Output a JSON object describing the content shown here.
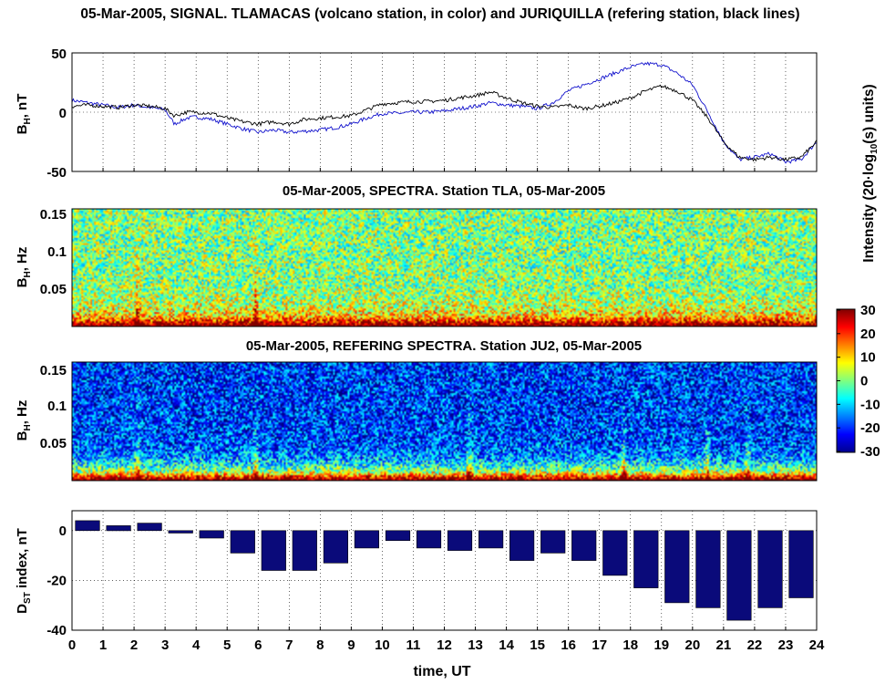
{
  "figure": {
    "title": "05-Mar-2005, SIGNAL. TLAMACAS (volcano station, in color) and JURIQUILLA (refering station, black lines)",
    "xlabel": "time, UT",
    "colorbar": {
      "label": "Intensity (20·log",
      "label_sub": "10",
      "label_tail": "(s) units)",
      "ticks": [
        "30",
        "20",
        "10",
        "0",
        "-10",
        "-20",
        "-30"
      ]
    }
  },
  "chart_data": [
    {
      "type": "line",
      "id": "signal",
      "ylabel": "B",
      "ylabel_sub": "H",
      "ylabel_tail": ", nT",
      "ylim": [
        -50,
        50
      ],
      "yticks": [
        "50",
        "0",
        "-50"
      ],
      "xlim": [
        0,
        24
      ],
      "grid": true,
      "series": [
        {
          "name": "TLAMACAS",
          "color": "#1010cc",
          "x": [
            0,
            0.5,
            1,
            1.5,
            2,
            2.5,
            3,
            3.3,
            3.7,
            4,
            4.5,
            5,
            5.5,
            6,
            6.5,
            7,
            7.5,
            8,
            8.5,
            9,
            9.5,
            10,
            10.5,
            11,
            11.5,
            12,
            12.5,
            13,
            13.5,
            14,
            14.5,
            15,
            15.5,
            16,
            16.5,
            17,
            17.5,
            18,
            18.5,
            19,
            19.5,
            20,
            20.5,
            21,
            21.5,
            22,
            22.5,
            23,
            23.5,
            24
          ],
          "values": [
            10,
            8,
            6,
            4,
            6,
            4,
            2,
            -10,
            -5,
            -4,
            -6,
            -10,
            -14,
            -17,
            -15,
            -17,
            -16,
            -15,
            -13,
            -10,
            -5,
            -1,
            -1,
            0,
            0,
            1,
            3,
            5,
            8,
            6,
            5,
            3,
            8,
            18,
            23,
            28,
            33,
            38,
            41,
            40,
            33,
            23,
            0,
            -25,
            -40,
            -38,
            -35,
            -42,
            -40,
            -25
          ]
        },
        {
          "name": "JURIQUILLA",
          "color": "#000000",
          "x": [
            0,
            0.5,
            1,
            1.5,
            2,
            2.5,
            3,
            3.3,
            3.7,
            4,
            4.5,
            5,
            5.5,
            6,
            6.5,
            7,
            7.5,
            8,
            8.5,
            9,
            9.5,
            10,
            10.5,
            11,
            11.5,
            12,
            12.5,
            13,
            13.5,
            14,
            14.5,
            15,
            15.5,
            16,
            16.5,
            17,
            17.5,
            18,
            18.5,
            19,
            19.5,
            20,
            20.5,
            21,
            21.5,
            22,
            22.5,
            23,
            23.5,
            24
          ],
          "values": [
            5,
            6,
            5,
            4,
            6,
            5,
            3,
            -3,
            0,
            0,
            -1,
            -5,
            -8,
            -10,
            -8,
            -10,
            -6,
            -5,
            -4,
            -3,
            2,
            7,
            8,
            9,
            9,
            10,
            12,
            14,
            17,
            12,
            8,
            5,
            4,
            6,
            3,
            5,
            8,
            12,
            18,
            22,
            18,
            10,
            -5,
            -25,
            -38,
            -40,
            -38,
            -40,
            -38,
            -25
          ]
        }
      ]
    },
    {
      "type": "heatmap",
      "id": "spectra-tla",
      "title": "05-Mar-2005, SPECTRA. Station TLA, 05-Mar-2005",
      "ylabel": "B",
      "ylabel_sub": "H",
      "ylabel_tail": ", Hz",
      "ylim": [
        0,
        0.16
      ],
      "yticks": [
        "0.15",
        "0.1",
        "0.05"
      ],
      "xlim": [
        0,
        24
      ],
      "zlim": [
        -30,
        30
      ],
      "background_level": 0,
      "low_frequency_level": 25,
      "spikes_ut": [
        2.1,
        5.9
      ]
    },
    {
      "type": "heatmap",
      "id": "spectra-ju2",
      "title": "05-Mar-2005, REFERING SPECTRA. Station JU2, 05-Mar-2005",
      "ylabel": "B",
      "ylabel_sub": "H",
      "ylabel_tail": ", Hz",
      "ylim": [
        0,
        0.16
      ],
      "yticks": [
        "0.15",
        "0.1",
        "0.05"
      ],
      "xlim": [
        0,
        24
      ],
      "zlim": [
        -30,
        30
      ],
      "background_level": -20,
      "low_frequency_level": 25,
      "spikes_ut": [
        2.1,
        5.9,
        12.8,
        17.8,
        20.5,
        21.8
      ]
    },
    {
      "type": "bar",
      "id": "dst",
      "ylabel": "D",
      "ylabel_sub": "ST",
      "ylabel_tail": " index, nT",
      "ylim": [
        -40,
        8
      ],
      "yticks": [
        "0",
        "-20",
        "-40"
      ],
      "grid": true,
      "color": "#0a0a7a",
      "x": [
        0.5,
        1.5,
        2.5,
        3.5,
        4.5,
        5.5,
        6.5,
        7.5,
        8.5,
        9.5,
        10.5,
        11.5,
        12.5,
        13.5,
        14.5,
        15.5,
        16.5,
        17.5,
        18.5,
        19.5,
        20.5,
        21.5,
        22.5,
        23.5
      ],
      "values": [
        4,
        2,
        3,
        -1,
        -3,
        -9,
        -16,
        -16,
        -13,
        -7,
        -4,
        -7,
        -8,
        -7,
        -12,
        -9,
        -12,
        -18,
        -23,
        -29,
        -31,
        -36,
        -31,
        -27
      ],
      "xticks": [
        "0",
        "1",
        "2",
        "3",
        "4",
        "5",
        "6",
        "7",
        "8",
        "9",
        "10",
        "11",
        "12",
        "13",
        "14",
        "15",
        "16",
        "17",
        "18",
        "19",
        "20",
        "21",
        "22",
        "23",
        "24"
      ]
    }
  ]
}
